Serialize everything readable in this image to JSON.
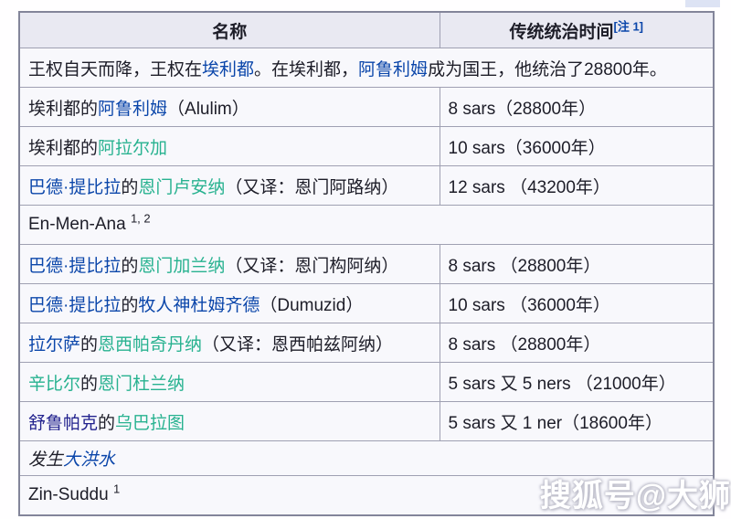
{
  "colors": {
    "link_blue": "#0b46aa",
    "link_teal": "#28b290",
    "link_navy": "#23238e",
    "header_bg": "#e9e9f2",
    "row_bg": "#f8f8fc",
    "border": "#9fa0b2"
  },
  "watermark": {
    "text": "搜狐号@大狮"
  },
  "table": {
    "headers": [
      {
        "label": "名称"
      },
      {
        "label": "传统统治时间",
        "sup": "[注 1]"
      }
    ],
    "rows": [
      {
        "span": true,
        "segments": [
          {
            "t": "王权自天而降，王权在"
          },
          {
            "t": "埃利都",
            "s": "blue"
          },
          {
            "t": "。在埃利都，"
          },
          {
            "t": "阿鲁利姆",
            "s": "blue"
          },
          {
            "t": "成为国王，他统治了28800年。"
          }
        ]
      },
      {
        "name": [
          {
            "t": "埃利都的"
          },
          {
            "t": "阿鲁利姆",
            "s": "blue"
          },
          {
            "t": "（Alulim）"
          }
        ],
        "time": "8 sars（28800年）"
      },
      {
        "name": [
          {
            "t": "埃利都的"
          },
          {
            "t": "阿拉尔加",
            "s": "teal"
          }
        ],
        "time": "10 sars（36000年）"
      },
      {
        "name": [
          {
            "t": "巴德·提比拉",
            "s": "blue"
          },
          {
            "t": "的"
          },
          {
            "t": "恩门卢安纳",
            "s": "teal"
          },
          {
            "t": "（又译：恩门阿路纳）"
          }
        ],
        "time": "12 sars （43200年）"
      },
      {
        "span": true,
        "segments": [
          {
            "t": "En-Men-Ana "
          },
          {
            "t": "1, 2",
            "sup": true
          }
        ]
      },
      {
        "name": [
          {
            "t": "巴德·提比拉",
            "s": "blue"
          },
          {
            "t": "的"
          },
          {
            "t": "恩门加兰纳",
            "s": "teal"
          },
          {
            "t": "（又译：恩门构阿纳）"
          }
        ],
        "time": "8 sars （28800年）"
      },
      {
        "name": [
          {
            "t": "巴德·提比拉",
            "s": "blue"
          },
          {
            "t": "的"
          },
          {
            "t": "牧人神杜姆齐德",
            "s": "blue"
          },
          {
            "t": "（Dumuzid）"
          }
        ],
        "time": "10 sars （36000年）"
      },
      {
        "name": [
          {
            "t": "拉尔萨",
            "s": "blue"
          },
          {
            "t": "的"
          },
          {
            "t": "恩西帕奇丹纳",
            "s": "teal"
          },
          {
            "t": "（又译：恩西帕兹阿纳）"
          }
        ],
        "time": "8 sars （28800年）"
      },
      {
        "name": [
          {
            "t": "辛比尔",
            "s": "teal"
          },
          {
            "t": "的"
          },
          {
            "t": "恩门杜兰纳",
            "s": "teal"
          }
        ],
        "time": "5 sars 又 5 ners （21000年）"
      },
      {
        "name": [
          {
            "t": "舒鲁帕克",
            "s": "navy"
          },
          {
            "t": "的"
          },
          {
            "t": "乌巴拉图",
            "s": "teal"
          }
        ],
        "time": "5 sars 又 1 ner（18600年）"
      },
      {
        "span": true,
        "italic": true,
        "short": true,
        "segments": [
          {
            "t": "发生"
          },
          {
            "t": "大洪水",
            "s": "blue"
          }
        ]
      },
      {
        "span": true,
        "segments": [
          {
            "t": "Zin-Suddu "
          },
          {
            "t": "1",
            "sup": true
          }
        ]
      }
    ]
  }
}
